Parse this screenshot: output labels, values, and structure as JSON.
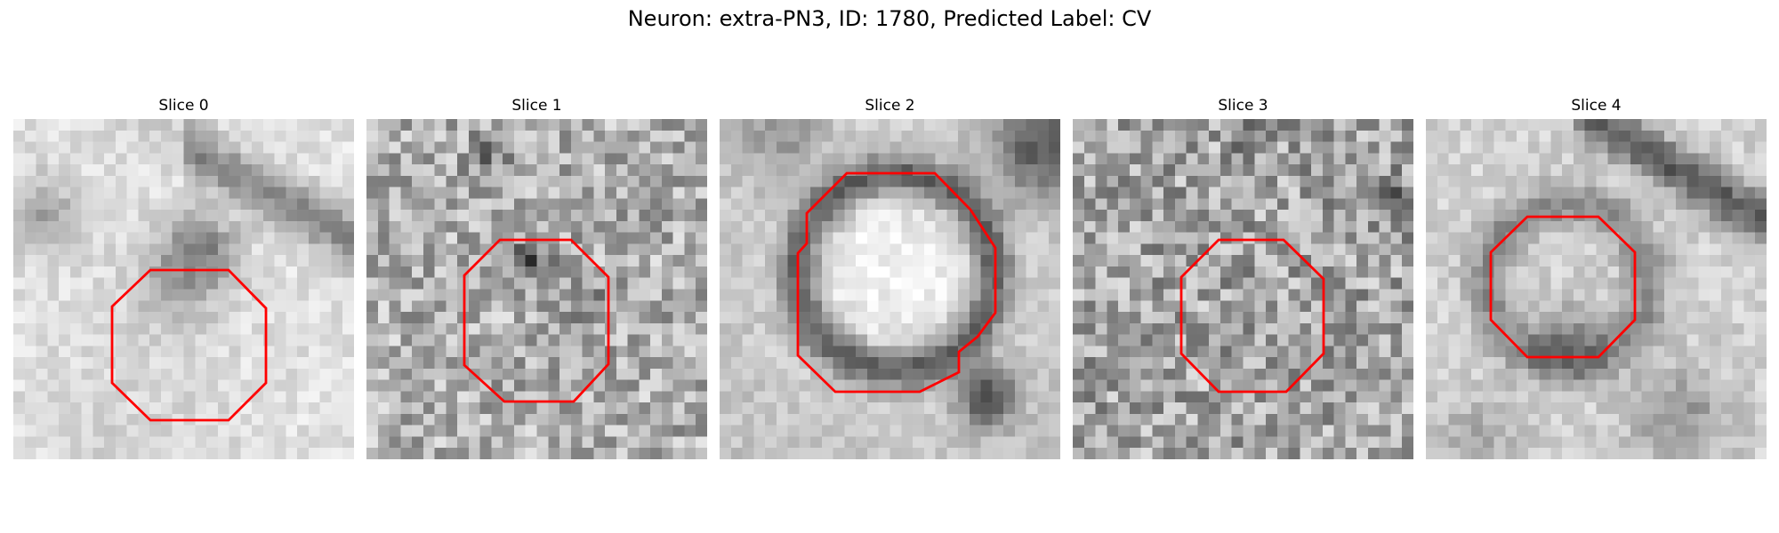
{
  "figure": {
    "title": "Neuron: extra-PN3, ID: 1780, Predicted Label: CV"
  },
  "colors": {
    "contour": "#ff0000",
    "background": "#ffffff"
  },
  "slices": [
    {
      "title": "Slice 0",
      "description": "grayscale EM crop, light textured field with dark membrane band at top-right and darker blob at center"
    },
    {
      "title": "Slice 1",
      "description": "grayscale EM crop, noisy mid-gray texture with dark spots inside the contour"
    },
    {
      "title": "Slice 2",
      "description": "grayscale EM crop, bright round vesicle-like body bounded by a dark ring, dark blob at lower right"
    },
    {
      "title": "Slice 3",
      "description": "grayscale EM crop, high-noise mid-gray texture"
    },
    {
      "title": "Slice 4",
      "description": "grayscale EM crop, light field with dark membrane arc at top-right and a faint ring at center"
    }
  ]
}
